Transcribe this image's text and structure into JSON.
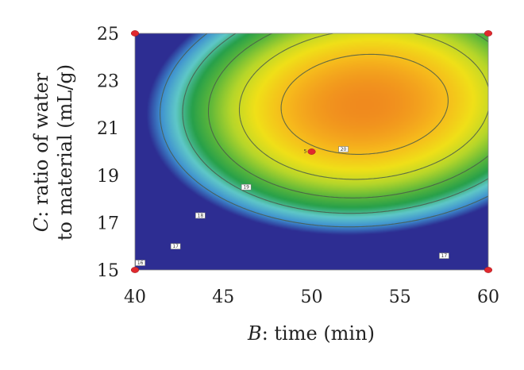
{
  "chart_data": {
    "type": "heatmap",
    "subtype": "contour",
    "title": "",
    "x_axis": {
      "label_italic": "B",
      "label_rest": ": time (min)",
      "range": [
        40,
        60
      ],
      "ticks": [
        "40",
        "45",
        "50",
        "55",
        "60"
      ]
    },
    "y_axis": {
      "label_italic": "C",
      "label_line1_rest": ": ratio of water",
      "label_line2": "to material (mL/g)",
      "range": [
        15,
        25
      ],
      "ticks": [
        "15",
        "17",
        "19",
        "21",
        "23",
        "25"
      ]
    },
    "surface": {
      "peak_x": 53,
      "peak_y": 22,
      "peak_value": 20.8,
      "colors": [
        "#2d2d92",
        "#3e8fd0",
        "#5fc8c8",
        "#27a04a",
        "#5fb83a",
        "#b6d62a",
        "#f0e018",
        "#f6b81c",
        "#f08a1e"
      ]
    },
    "contours": [
      {
        "level": 20,
        "label": "20",
        "label_x": 51.8,
        "label_y": 20.1
      },
      {
        "level": 19,
        "label": "19",
        "label_x": 46.3,
        "label_y": 18.5
      },
      {
        "level": 18,
        "label": "18",
        "label_x": 43.7,
        "label_y": 17.3
      },
      {
        "level": 17,
        "label": "17",
        "label_x": 42.3,
        "label_y": 16.0
      },
      {
        "level": 16,
        "label": "16",
        "label_x": 40.3,
        "label_y": 15.3
      },
      {
        "level": 17,
        "label": "17",
        "label_x": 57.5,
        "label_y": 15.6
      }
    ],
    "design_points": [
      {
        "x": 40,
        "y": 15
      },
      {
        "x": 40,
        "y": 25
      },
      {
        "x": 60,
        "y": 15
      },
      {
        "x": 60,
        "y": 25
      },
      {
        "x": 50,
        "y": 20,
        "label": "5"
      }
    ],
    "grid": false,
    "legend": "none"
  }
}
